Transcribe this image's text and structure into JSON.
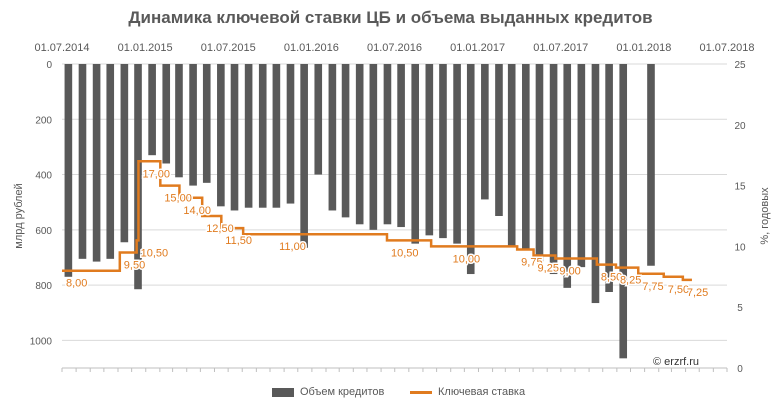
{
  "title": "Динамика ключевой ставки ЦБ и объема выданных кредитов",
  "watermark": "© erzrf.ru",
  "colors": {
    "bars": "#595959",
    "rate": "#e07b1f",
    "grid": "#d9d9d9",
    "text": "#595959"
  },
  "legend": {
    "position": "bottom",
    "bars_label": "Объем кредитов",
    "rate_label": "Ключевая ставка"
  },
  "chart_data": {
    "type": "bar",
    "x_axis": {
      "position": "top",
      "ticks": [
        "01.07.2014",
        "01.01.2015",
        "01.07.2015",
        "01.01.2016",
        "01.07.2016",
        "01.01.2017",
        "01.07.2017",
        "01.01.2018",
        "01.07.2018"
      ],
      "range": [
        "2014-07-01",
        "2018-07-01"
      ]
    },
    "y_left": {
      "label": "млрд рублей",
      "reversed": true,
      "range": [
        0,
        1100
      ],
      "ticks": [
        0,
        200,
        400,
        600,
        800,
        1000
      ]
    },
    "y_right": {
      "label": "%, годовых",
      "range": [
        0,
        25
      ],
      "ticks": [
        0,
        5,
        10,
        15,
        20,
        25
      ]
    },
    "series": [
      {
        "name": "Объем кредитов",
        "type": "bar",
        "axis": "left",
        "x": [
          "2014-07-15",
          "2014-08-15",
          "2014-09-15",
          "2014-10-15",
          "2014-11-15",
          "2014-12-15",
          "2015-01-15",
          "2015-02-15",
          "2015-03-15",
          "2015-04-15",
          "2015-05-15",
          "2015-06-15",
          "2015-07-15",
          "2015-08-15",
          "2015-09-15",
          "2015-10-15",
          "2015-11-15",
          "2015-12-15",
          "2016-01-15",
          "2016-02-15",
          "2016-03-15",
          "2016-04-15",
          "2016-05-15",
          "2016-06-15",
          "2016-07-15",
          "2016-08-15",
          "2016-09-15",
          "2016-10-15",
          "2016-11-15",
          "2016-12-15",
          "2017-01-15",
          "2017-02-15",
          "2017-03-15",
          "2017-04-15",
          "2017-05-15",
          "2017-06-15",
          "2017-07-15",
          "2017-08-15",
          "2017-09-15",
          "2017-10-15",
          "2017-11-15",
          "2017-12-15",
          "2018-01-15"
        ],
        "values": [
          770,
          705,
          715,
          705,
          645,
          815,
          330,
          360,
          410,
          440,
          430,
          515,
          530,
          520,
          520,
          520,
          505,
          665,
          400,
          530,
          555,
          580,
          600,
          580,
          590,
          650,
          620,
          630,
          650,
          760,
          490,
          550,
          660,
          670,
          720,
          760,
          810,
          735,
          865,
          825,
          1065,
          0,
          730
        ]
      },
      {
        "name": "Ключевая ставка",
        "type": "step-line",
        "axis": "right",
        "points": [
          {
            "date": "2014-07-01",
            "value": 8.0
          },
          {
            "date": "2014-11-05",
            "value": 9.5
          },
          {
            "date": "2014-12-12",
            "value": 10.5
          },
          {
            "date": "2014-12-16",
            "value": 17.0
          },
          {
            "date": "2015-02-02",
            "value": 15.0
          },
          {
            "date": "2015-03-16",
            "value": 14.0
          },
          {
            "date": "2015-05-05",
            "value": 12.5
          },
          {
            "date": "2015-06-16",
            "value": 11.5
          },
          {
            "date": "2015-08-03",
            "value": 11.0
          },
          {
            "date": "2016-06-14",
            "value": 10.5
          },
          {
            "date": "2016-09-19",
            "value": 10.0
          },
          {
            "date": "2017-03-27",
            "value": 9.75
          },
          {
            "date": "2017-05-02",
            "value": 9.25
          },
          {
            "date": "2017-06-19",
            "value": 9.0
          },
          {
            "date": "2017-09-18",
            "value": 8.5
          },
          {
            "date": "2017-10-30",
            "value": 8.25
          },
          {
            "date": "2017-12-18",
            "value": 7.75
          },
          {
            "date": "2018-02-12",
            "value": 7.5
          },
          {
            "date": "2018-03-26",
            "value": 7.25
          },
          {
            "date": "2018-04-15",
            "value": 7.25
          }
        ],
        "labels": [
          "8,00",
          "9,50",
          "10,50",
          "17,00",
          "15,00",
          "14,00",
          "12,50",
          "11,50",
          "11,00",
          "10,50",
          "10,00",
          "9,75",
          "9,25",
          "9,00",
          "8,50",
          "8,25",
          "7,75",
          "7,50",
          "7,25"
        ]
      }
    ],
    "grid": {
      "horizontal": true
    }
  }
}
